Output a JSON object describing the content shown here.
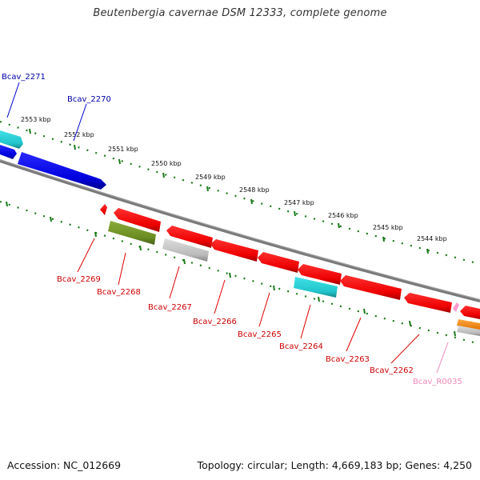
{
  "title": "Beutenbergia cavernae DSM 12333, complete genome",
  "footer": {
    "accession": "Accession: NC_012669",
    "topology": "Topology: circular; Length: 4,669,183 bp; Genes: 4,250"
  },
  "colors": {
    "backbone": "#7a7a7a",
    "ticks": "#1a7a1a",
    "cds": "#ee0000",
    "cds_blue": "#0000dd",
    "cyan": "#22c6cc",
    "gray_feature": "#b8b8b8",
    "olive": "#6b8c22",
    "orange": "#ff8c00",
    "pink": "#ff88cc",
    "label_blue": "#0000aa",
    "label_red": "#cc0000",
    "label_pink": "#ee88bb"
  },
  "kbp_labels": [
    "2553 kbp",
    "2552 kbp",
    "2551 kbp",
    "2550 kbp",
    "2549 kbp",
    "2548 kbp",
    "2547 kbp",
    "2546 kbp",
    "2545 kbp",
    "2544 kbp"
  ],
  "gene_labels": [
    "Bcav_2271",
    "Bcav_2270",
    "Bcav_2269",
    "Bcav_2268",
    "Bcav_2267",
    "Bcav_2266",
    "Bcav_2265",
    "Bcav_2264",
    "Bcav_2263",
    "Bcav_2262",
    "Bcav_R0035"
  ]
}
